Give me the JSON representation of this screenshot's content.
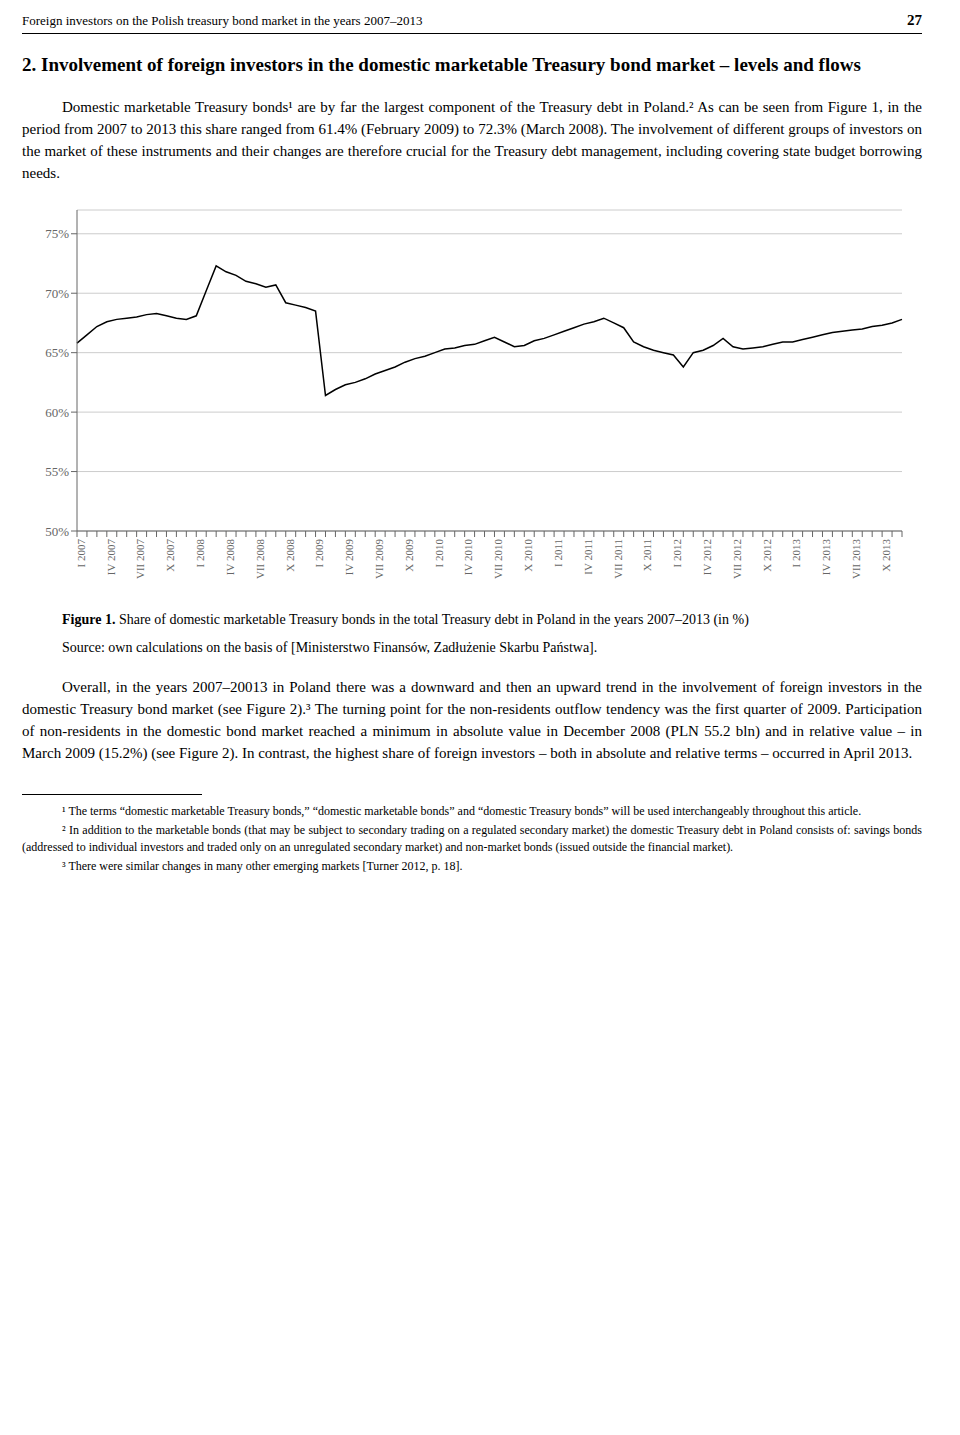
{
  "page": {
    "header": "Foreign investors on the Polish treasury bond market in the years 2007–2013",
    "page_number": "27",
    "heading": "2. Involvement of foreign investors in the domestic marketable Treasury bond market – levels and flows",
    "paragraphs_before": [
      "Domestic marketable Treasury bonds¹ are by far the largest component of the Treasury debt in Poland.² As can be seen from Figure 1, in the period from 2007 to 2013 this share ranged from 61.4% (February 2009) to 72.3% (March 2008). The involvement of different groups of investors on the market of these instruments and their changes are therefore crucial for the Treasury debt management, including covering state budget borrowing needs."
    ],
    "paragraphs_after": [
      "Overall, in the years 2007–20013 in Poland there was a downward and then an upward trend in the involvement of foreign investors in the domestic Treasury bond market (see Figure 2).³ The turning point for the non-residents outflow tendency was the first quarter of 2009. Participation of non-residents in the domestic bond market reached a minimum in absolute value in December 2008 (PLN 55.2 bln) and in relative value – in March 2009 (15.2%) (see Figure 2). In contrast, the highest share of foreign investors – both in absolute and relative terms – occurred in April 2013."
    ],
    "footnotes": [
      "¹ The terms “domestic marketable Treasury bonds,” “domestic marketable bonds” and “domestic Treasury bonds” will be used interchangeably throughout this article.",
      "² In addition to the marketable bonds (that may be subject to secondary trading on a regulated secondary market) the domestic Treasury debt in Poland consists of: savings bonds (addressed to individual investors and traded only on an unregulated secondary market) and non-market bonds (issued outside the financial market).",
      "³ There were similar changes in many other emerging markets [Turner 2012, p. 18]."
    ]
  },
  "chart_data": {
    "type": "line",
    "title": "Figure 1. Share of domestic marketable Treasury bonds in the total Treasury debt in Poland in the years 2007–2013 (in %)",
    "annotations": [
      "Source: own calculations on the basis of [Ministerstwo Finansów, Zadłużenie Skarbu Państwa]."
    ],
    "categories": [
      "I 2007",
      null,
      null,
      "IV 2007",
      null,
      null,
      "VII 2007",
      null,
      null,
      "X 2007",
      null,
      null,
      "I 2008",
      null,
      null,
      "IV 2008",
      null,
      null,
      "VII 2008",
      null,
      null,
      "X 2008",
      null,
      null,
      "I 2009",
      null,
      null,
      "IV 2009",
      null,
      null,
      "VII 2009",
      null,
      null,
      "X 2009",
      null,
      null,
      "I 2010",
      null,
      null,
      "IV 2010",
      null,
      null,
      "VII 2010",
      null,
      null,
      "X 2010",
      null,
      null,
      "I 2011",
      null,
      null,
      "IV 2011",
      null,
      null,
      "VII 2011",
      null,
      null,
      "X 2011",
      null,
      null,
      "I 2012",
      null,
      null,
      "IV 2012",
      null,
      null,
      "VII 2012",
      null,
      null,
      "X 2012",
      null,
      null,
      "I 2013",
      null,
      null,
      "IV 2013",
      null,
      null,
      "VII 2013",
      null,
      null,
      "X 2013",
      null,
      null
    ],
    "values": [
      65.8,
      66.5,
      67.2,
      67.6,
      67.8,
      67.9,
      68.0,
      68.2,
      68.3,
      68.1,
      67.9,
      67.8,
      68.1,
      70.2,
      72.3,
      71.8,
      71.5,
      71.0,
      70.8,
      70.5,
      70.7,
      69.2,
      69.0,
      68.8,
      68.5,
      61.4,
      61.9,
      62.3,
      62.5,
      62.8,
      63.2,
      63.5,
      63.8,
      64.2,
      64.5,
      64.7,
      65.0,
      65.3,
      65.4,
      65.6,
      65.7,
      66.0,
      66.3,
      65.9,
      65.5,
      65.6,
      66.0,
      66.2,
      66.5,
      66.8,
      67.1,
      67.4,
      67.6,
      67.9,
      67.5,
      67.1,
      65.9,
      65.5,
      65.2,
      65.0,
      64.8,
      63.8,
      65.0,
      65.2,
      65.6,
      66.2,
      65.5,
      65.3,
      65.4,
      65.5,
      65.7,
      65.9,
      65.9,
      66.1,
      66.3,
      66.5,
      66.7,
      66.8,
      66.9,
      67.0,
      67.2,
      67.3,
      67.5,
      67.8
    ],
    "color": "#000000",
    "ylim": [
      50,
      77
    ],
    "yticks": [
      {
        "value": 50,
        "label": "50%"
      },
      {
        "value": 55,
        "label": "55%"
      },
      {
        "value": 60,
        "label": "60%"
      },
      {
        "value": 65,
        "label": "65%"
      },
      {
        "value": 70,
        "label": "70%"
      },
      {
        "value": 75,
        "label": "75%"
      }
    ],
    "grid": true
  }
}
